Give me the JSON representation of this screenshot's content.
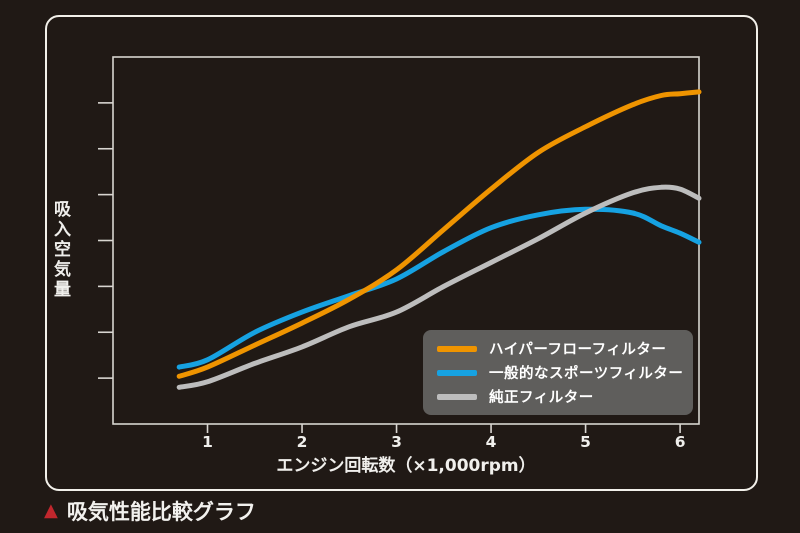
{
  "page": {
    "background": "#201915",
    "frame_border_color": "#f2f0ea",
    "axis_color": "#d8d5d0",
    "text_color": "#f0efec"
  },
  "caption": {
    "marker_icon": "triangle-icon",
    "marker_glyph": "▲",
    "marker_color": "#c1272d",
    "text": "吸気性能比較グラフ"
  },
  "chart_data": {
    "type": "line",
    "title": "",
    "xlabel": "エンジン回転数（×1,000rpm）",
    "ylabel": "吸入空気量",
    "xlim": [
      0,
      6.2
    ],
    "ylim": [
      0,
      100
    ],
    "x_ticks": [
      1,
      2,
      3,
      4,
      5,
      6
    ],
    "y_tick_step": 12.5,
    "y_ticks_labeled": false,
    "grid": false,
    "legend_position": "lower-right",
    "legend_background": "#5f5e5c",
    "x": [
      0.7,
      1,
      1.5,
      2,
      2.5,
      3,
      3.5,
      4,
      4.5,
      5,
      5.5,
      5.8,
      6,
      6.2
    ],
    "series": [
      {
        "name": "ハイパーフローフィルター",
        "color": "#ef9400",
        "values": [
          13,
          15.5,
          21.5,
          27.5,
          34,
          42,
          53,
          64,
          74,
          81,
          87,
          89.5,
          90,
          90.5
        ]
      },
      {
        "name": "一般的なスポーツフィルター",
        "color": "#16a2e2",
        "values": [
          15.5,
          17.5,
          25,
          30.5,
          35,
          39.5,
          47,
          53.5,
          57,
          58.5,
          57.5,
          54,
          52,
          49.5
        ]
      },
      {
        "name": "純正フィルター",
        "color": "#bdbdbd",
        "values": [
          10,
          11.5,
          16.5,
          21,
          26.5,
          30.5,
          37.5,
          44,
          50.5,
          57.5,
          63,
          64.5,
          64,
          61.5
        ]
      }
    ]
  }
}
